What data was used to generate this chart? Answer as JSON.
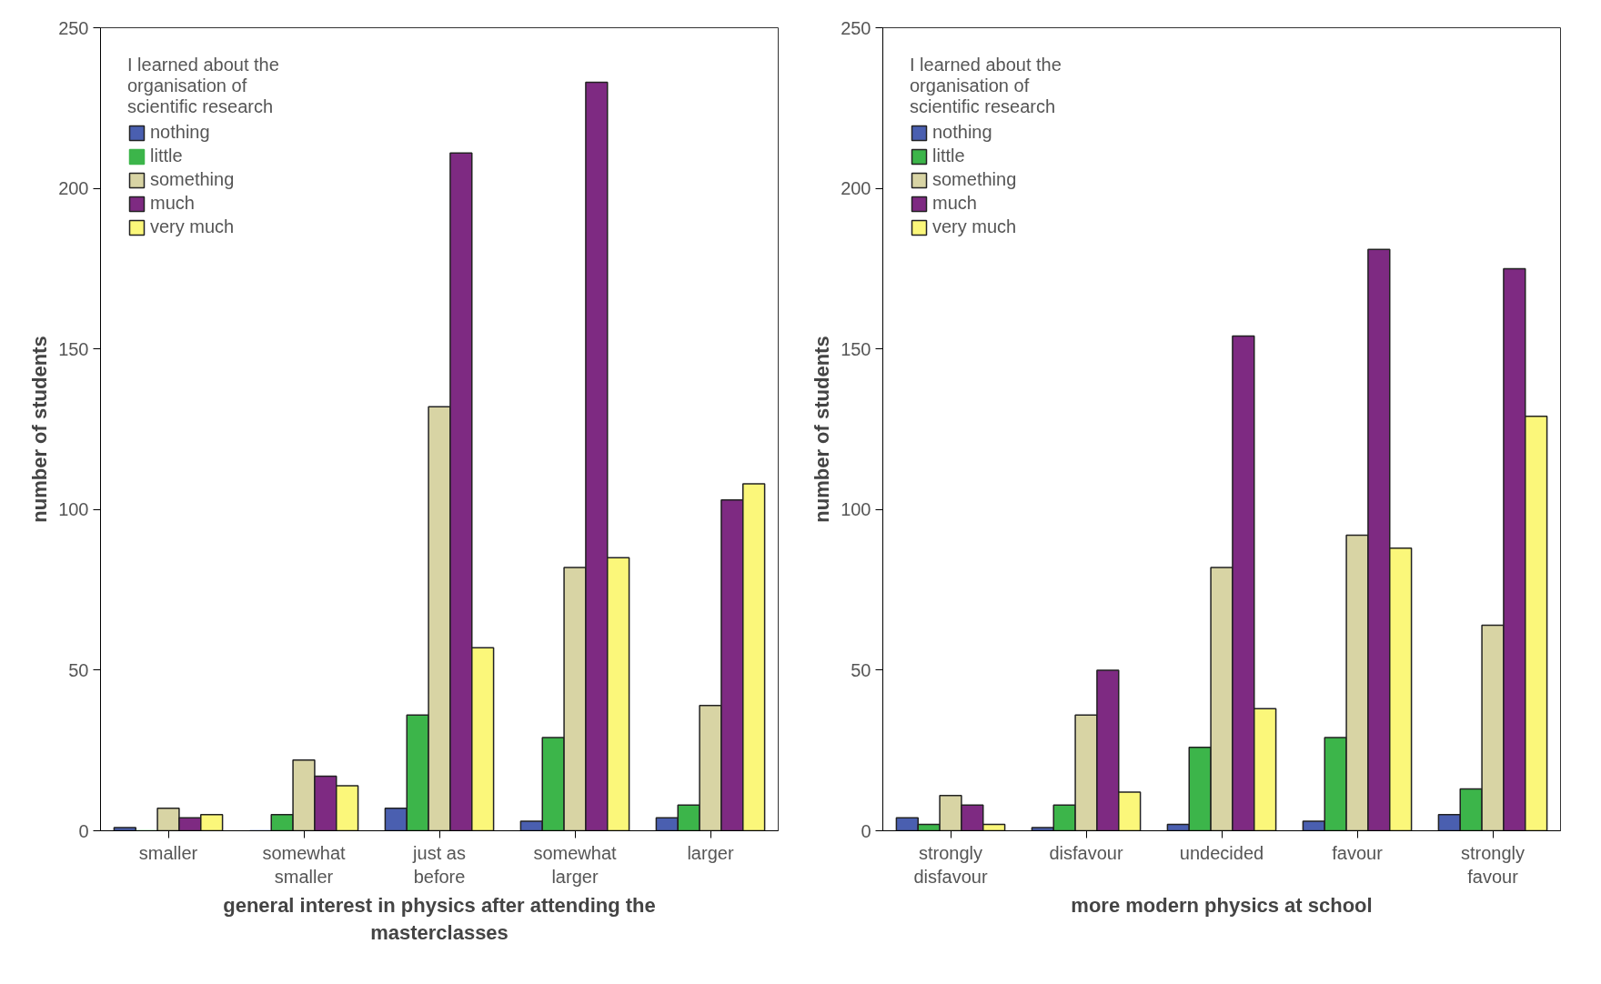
{
  "chart_data": [
    {
      "type": "bar",
      "xlabel": "general interest in physics after attending the masterclasses",
      "ylabel": "number of students",
      "legend_title": "I learned about the organisation of scientific research",
      "categories": [
        "smaller",
        "somewhat smaller",
        "just as before",
        "somewhat larger",
        "larger"
      ],
      "ylim": [
        0,
        250
      ],
      "yticks": [
        0,
        50,
        100,
        150,
        200,
        250
      ],
      "grid": false,
      "legend": "top left",
      "series": [
        {
          "name": "nothing",
          "color": "#4a5fb0",
          "values": [
            1,
            0,
            7,
            3,
            4
          ]
        },
        {
          "name": "little",
          "color": "#3cb54a",
          "values": [
            0,
            5,
            36,
            29,
            8
          ]
        },
        {
          "name": "something",
          "color": "#d8d4a4",
          "values": [
            7,
            22,
            132,
            82,
            39
          ]
        },
        {
          "name": "much",
          "color": "#7e2a82",
          "values": [
            4,
            17,
            211,
            233,
            103
          ]
        },
        {
          "name": "very much",
          "color": "#fbf77a",
          "values": [
            5,
            14,
            57,
            85,
            108
          ]
        }
      ]
    },
    {
      "type": "bar",
      "xlabel": "more modern physics at school",
      "ylabel": "number of students",
      "legend_title": "I learned about the organisation of scientific research",
      "categories": [
        "strongly disfavour",
        "disfavour",
        "undecided",
        "favour",
        "strongly favour"
      ],
      "ylim": [
        0,
        250
      ],
      "yticks": [
        0,
        50,
        100,
        150,
        200,
        250
      ],
      "grid": false,
      "legend": "top left",
      "series": [
        {
          "name": "nothing",
          "color": "#4a5fb0",
          "values": [
            4,
            1,
            2,
            3,
            5
          ]
        },
        {
          "name": "little",
          "color": "#3cb54a",
          "values": [
            2,
            8,
            26,
            29,
            13
          ]
        },
        {
          "name": "something",
          "color": "#d8d4a4",
          "values": [
            11,
            36,
            82,
            92,
            64
          ]
        },
        {
          "name": "much",
          "color": "#7e2a82",
          "values": [
            8,
            50,
            154,
            181,
            175
          ]
        },
        {
          "name": "very much",
          "color": "#fbf77a",
          "values": [
            2,
            12,
            38,
            88,
            129
          ]
        }
      ]
    }
  ]
}
